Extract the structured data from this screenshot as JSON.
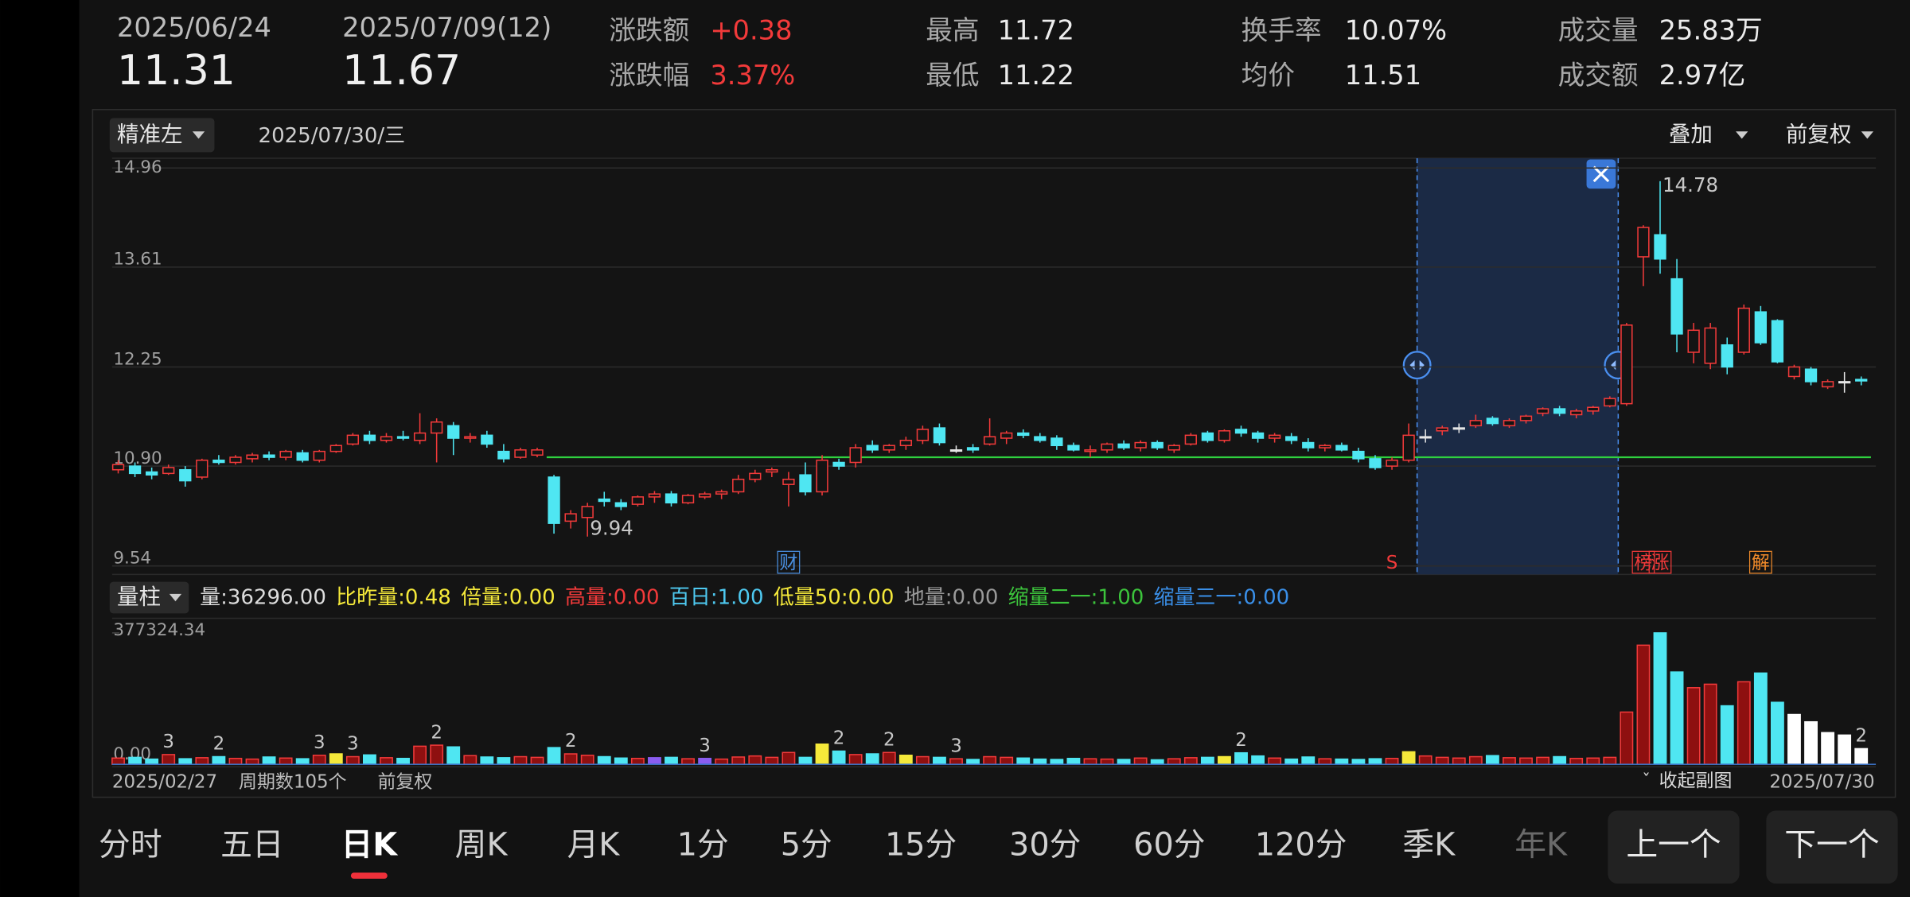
{
  "header": {
    "start_date": "2025/06/24",
    "start_price": "11.31",
    "end_date": "2025/07/09(12)",
    "end_price": "11.67",
    "stats": [
      {
        "label": "涨跌额",
        "value": "+0.38"
      },
      {
        "label": "涨跌幅",
        "value": "3.37%"
      },
      {
        "label": "最高",
        "value": "11.72"
      },
      {
        "label": "最低",
        "value": "11.22"
      },
      {
        "label": "换手率",
        "value": "10.07%"
      },
      {
        "label": "均价",
        "value": "11.51"
      },
      {
        "label": "成交量",
        "value": "25.83万"
      },
      {
        "label": "成交额",
        "value": "2.97亿"
      }
    ]
  },
  "chart_data": {
    "type": "candlestick",
    "toolbar": {
      "mode": "精准左",
      "date": "2025/07/30/三",
      "overlay": "叠加",
      "adjust": "前复权"
    },
    "ylim": [
      9.54,
      14.96
    ],
    "yticks": [
      14.96,
      13.61,
      12.25,
      {
        "value": 10.9,
        "label": "10.90"
      },
      9.54
    ],
    "grid": true,
    "up_color": "#f23a3a",
    "down_color": "#4fe6f2",
    "hline": 11.02,
    "hline_color": "#2fd13f",
    "annotations": {
      "high": "14.78",
      "low": "9.94"
    },
    "markers": [
      "财",
      "S",
      "榜",
      "涨",
      "解"
    ],
    "candles": [
      [
        10.85,
        10.98,
        10.8,
        10.92
      ],
      [
        10.9,
        10.95,
        10.75,
        10.8
      ],
      [
        10.82,
        10.88,
        10.72,
        10.78
      ],
      [
        10.8,
        10.92,
        10.78,
        10.88
      ],
      [
        10.85,
        10.9,
        10.62,
        10.7
      ],
      [
        10.75,
        11.0,
        10.72,
        10.98
      ],
      [
        10.98,
        11.05,
        10.92,
        10.95
      ],
      [
        10.95,
        11.05,
        10.92,
        11.02
      ],
      [
        11.0,
        11.08,
        10.95,
        11.05
      ],
      [
        11.05,
        11.1,
        10.98,
        11.02
      ],
      [
        11.02,
        11.12,
        10.98,
        11.1
      ],
      [
        11.08,
        11.12,
        10.95,
        10.98
      ],
      [
        10.98,
        11.12,
        10.95,
        11.1
      ],
      [
        11.1,
        11.2,
        11.08,
        11.18
      ],
      [
        11.2,
        11.35,
        11.18,
        11.32
      ],
      [
        11.32,
        11.38,
        11.2,
        11.25
      ],
      [
        11.25,
        11.35,
        11.22,
        11.3
      ],
      [
        11.3,
        11.38,
        11.25,
        11.28
      ],
      [
        11.25,
        11.62,
        11.2,
        11.35
      ],
      [
        11.35,
        11.55,
        10.95,
        11.5
      ],
      [
        11.45,
        11.5,
        11.05,
        11.28
      ],
      [
        11.28,
        11.35,
        11.22,
        11.3
      ],
      [
        11.32,
        11.38,
        11.15,
        11.2
      ],
      [
        11.1,
        11.2,
        10.95,
        11.0
      ],
      [
        11.02,
        11.15,
        11.0,
        11.12
      ],
      [
        11.05,
        11.15,
        11.02,
        11.12
      ],
      [
        10.75,
        10.78,
        9.98,
        10.12
      ],
      [
        10.15,
        10.3,
        10.05,
        10.25
      ],
      [
        10.2,
        10.4,
        9.94,
        10.35
      ],
      [
        10.45,
        10.55,
        10.35,
        10.42
      ],
      [
        10.4,
        10.45,
        10.3,
        10.35
      ],
      [
        10.38,
        10.5,
        10.35,
        10.48
      ],
      [
        10.48,
        10.56,
        10.4,
        10.52
      ],
      [
        10.52,
        10.56,
        10.35,
        10.4
      ],
      [
        10.4,
        10.52,
        10.38,
        10.5
      ],
      [
        10.48,
        10.55,
        10.45,
        10.52
      ],
      [
        10.52,
        10.58,
        10.45,
        10.55
      ],
      [
        10.55,
        10.78,
        10.52,
        10.72
      ],
      [
        10.72,
        10.85,
        10.68,
        10.8
      ],
      [
        10.82,
        10.88,
        10.75,
        10.85
      ],
      [
        10.65,
        10.82,
        10.35,
        10.72
      ],
      [
        10.78,
        10.95,
        10.5,
        10.55
      ],
      [
        10.55,
        11.05,
        10.5,
        10.98
      ],
      [
        10.95,
        11.0,
        10.85,
        10.9
      ],
      [
        10.95,
        11.2,
        10.88,
        11.15
      ],
      [
        11.18,
        11.25,
        11.08,
        11.12
      ],
      [
        11.12,
        11.2,
        11.08,
        11.18
      ],
      [
        11.18,
        11.3,
        11.12,
        11.25
      ],
      [
        11.25,
        11.45,
        11.2,
        11.4
      ],
      [
        11.42,
        11.48,
        11.18,
        11.22
      ],
      [
        11.12,
        11.18,
        11.08,
        11.12
      ],
      [
        11.15,
        11.2,
        11.08,
        11.12
      ],
      [
        11.2,
        11.55,
        11.18,
        11.3
      ],
      [
        11.28,
        11.38,
        11.2,
        11.35
      ],
      [
        11.35,
        11.4,
        11.28,
        11.32
      ],
      [
        11.3,
        11.35,
        11.22,
        11.25
      ],
      [
        11.28,
        11.32,
        11.12,
        11.18
      ],
      [
        11.18,
        11.22,
        11.1,
        11.12
      ],
      [
        11.1,
        11.18,
        11.02,
        11.12
      ],
      [
        11.12,
        11.22,
        11.08,
        11.2
      ],
      [
        11.2,
        11.25,
        11.12,
        11.15
      ],
      [
        11.15,
        11.25,
        11.1,
        11.22
      ],
      [
        11.22,
        11.25,
        11.12,
        11.15
      ],
      [
        11.12,
        11.2,
        11.08,
        11.18
      ],
      [
        11.2,
        11.35,
        11.18,
        11.32
      ],
      [
        11.35,
        11.38,
        11.22,
        11.25
      ],
      [
        11.25,
        11.4,
        11.22,
        11.38
      ],
      [
        11.4,
        11.45,
        11.3,
        11.35
      ],
      [
        11.35,
        11.38,
        11.22,
        11.28
      ],
      [
        11.28,
        11.35,
        11.22,
        11.32
      ],
      [
        11.3,
        11.35,
        11.2,
        11.25
      ],
      [
        11.22,
        11.28,
        11.1,
        11.15
      ],
      [
        11.15,
        11.2,
        11.1,
        11.18
      ],
      [
        11.18,
        11.22,
        11.1,
        11.12
      ],
      [
        11.1,
        11.15,
        10.95,
        11.0
      ],
      [
        11.0,
        11.05,
        10.85,
        10.88
      ],
      [
        10.9,
        11.02,
        10.85,
        10.98
      ],
      [
        10.98,
        11.48,
        10.95,
        11.32
      ],
      [
        11.3,
        11.4,
        11.22,
        11.3
      ],
      [
        11.38,
        11.45,
        11.32,
        11.42
      ],
      [
        11.42,
        11.48,
        11.35,
        11.42
      ],
      [
        11.45,
        11.6,
        11.42,
        11.52
      ],
      [
        11.55,
        11.58,
        11.45,
        11.48
      ],
      [
        11.45,
        11.55,
        11.42,
        11.52
      ],
      [
        11.52,
        11.6,
        11.48,
        11.58
      ],
      [
        11.62,
        11.7,
        11.58,
        11.68
      ],
      [
        11.68,
        11.72,
        11.58,
        11.62
      ],
      [
        11.6,
        11.68,
        11.55,
        11.65
      ],
      [
        11.65,
        11.72,
        11.6,
        11.7
      ],
      [
        11.72,
        11.85,
        11.7,
        11.82
      ],
      [
        11.75,
        12.85,
        11.72,
        12.82
      ],
      [
        13.75,
        14.18,
        13.35,
        14.15
      ],
      [
        14.05,
        14.78,
        13.52,
        13.72
      ],
      [
        13.45,
        13.72,
        12.45,
        12.7
      ],
      [
        12.45,
        12.85,
        12.3,
        12.75
      ],
      [
        12.3,
        12.85,
        12.22,
        12.78
      ],
      [
        12.55,
        12.65,
        12.15,
        12.25
      ],
      [
        12.45,
        13.1,
        12.42,
        13.05
      ],
      [
        13.0,
        13.08,
        12.55,
        12.58
      ],
      [
        12.88,
        12.9,
        12.3,
        12.32
      ],
      [
        12.12,
        12.28,
        12.08,
        12.25
      ],
      [
        12.22,
        12.25,
        12.0,
        12.05
      ],
      [
        11.98,
        12.08,
        11.95,
        12.05
      ],
      [
        12.05,
        12.18,
        11.9,
        12.05
      ],
      [
        12.08,
        12.12,
        12.0,
        12.06
      ]
    ],
    "volume": {
      "selector": "量柱",
      "indicators": [
        {
          "text": "量:36296.00",
          "color": "#dddddd"
        },
        {
          "text": "比昨量:0.48",
          "color": "#f5e93a"
        },
        {
          "text": "倍量:0.00",
          "color": "#f5e93a"
        },
        {
          "text": "高量:0.00",
          "color": "#f23a3a"
        },
        {
          "text": "百日:1.00",
          "color": "#4ec9f0"
        },
        {
          "text": "低量50:0.00",
          "color": "#f5e93a"
        },
        {
          "text": "地量:0.00",
          "color": "#9a9a9a"
        },
        {
          "text": "缩量二一:1.00",
          "color": "#3cc43c"
        },
        {
          "text": "缩量三一:0.00",
          "color": "#3a8fe8"
        }
      ],
      "ylim": [
        0,
        377324.34
      ],
      "yticks": [
        {
          "value": 0,
          "label": "0.00"
        },
        377324.34
      ],
      "tags": [
        "3",
        "2",
        "3",
        "3",
        "2",
        "2",
        "3",
        "2",
        "2",
        "3",
        "2",
        "2"
      ],
      "color_overrides": {
        "13": "#f5e93a",
        "42": "#f5e93a",
        "47": "#f5e93a",
        "66": "#f5e93a",
        "77": "#f5e93a",
        "32": "#8a5cf0",
        "35": "#8a5cf0",
        "100": "#ffffff",
        "101": "#ffffff",
        "102": "#ffffff",
        "103": "#ffffff",
        "104": "#ffffff"
      },
      "values": [
        18000,
        20000,
        15000,
        28000,
        16000,
        19000,
        22000,
        17000,
        15000,
        21000,
        18000,
        16000,
        26000,
        30000,
        22000,
        27000,
        19000,
        17000,
        52000,
        55000,
        50000,
        25000,
        21000,
        19000,
        22000,
        20000,
        48000,
        30000,
        26000,
        22000,
        18000,
        17000,
        19000,
        20000,
        16000,
        17000,
        15000,
        21000,
        24000,
        20000,
        34000,
        20000,
        58000,
        38000,
        28000,
        30000,
        34000,
        26000,
        22000,
        20000,
        16000,
        14000,
        22000,
        20000,
        18000,
        15000,
        14000,
        17000,
        16000,
        15000,
        14000,
        18000,
        13000,
        16000,
        19000,
        20000,
        22000,
        33000,
        24000,
        18000,
        15000,
        21000,
        16000,
        15000,
        14000,
        16000,
        17000,
        36000,
        24000,
        20000,
        18000,
        22000,
        25000,
        19000,
        18000,
        20000,
        22000,
        17000,
        18000,
        20000,
        150000,
        342000,
        377324.34,
        265000,
        220000,
        230000,
        168000,
        237000,
        262000,
        178000,
        143000,
        122000,
        91000,
        84000,
        45000
      ]
    },
    "footer": {
      "start": "2025/02/27",
      "periods": "周期数105个",
      "adjust": "前复权",
      "collapse": "收起副图",
      "end": "2025/07/30"
    }
  },
  "tabs": [
    "分时",
    "五日",
    "日K",
    "周K",
    "月K",
    "1分",
    "5分",
    "15分",
    "30分",
    "60分",
    "120分",
    "季K",
    "年K"
  ],
  "buttons": [
    "上一个",
    "下一个"
  ]
}
